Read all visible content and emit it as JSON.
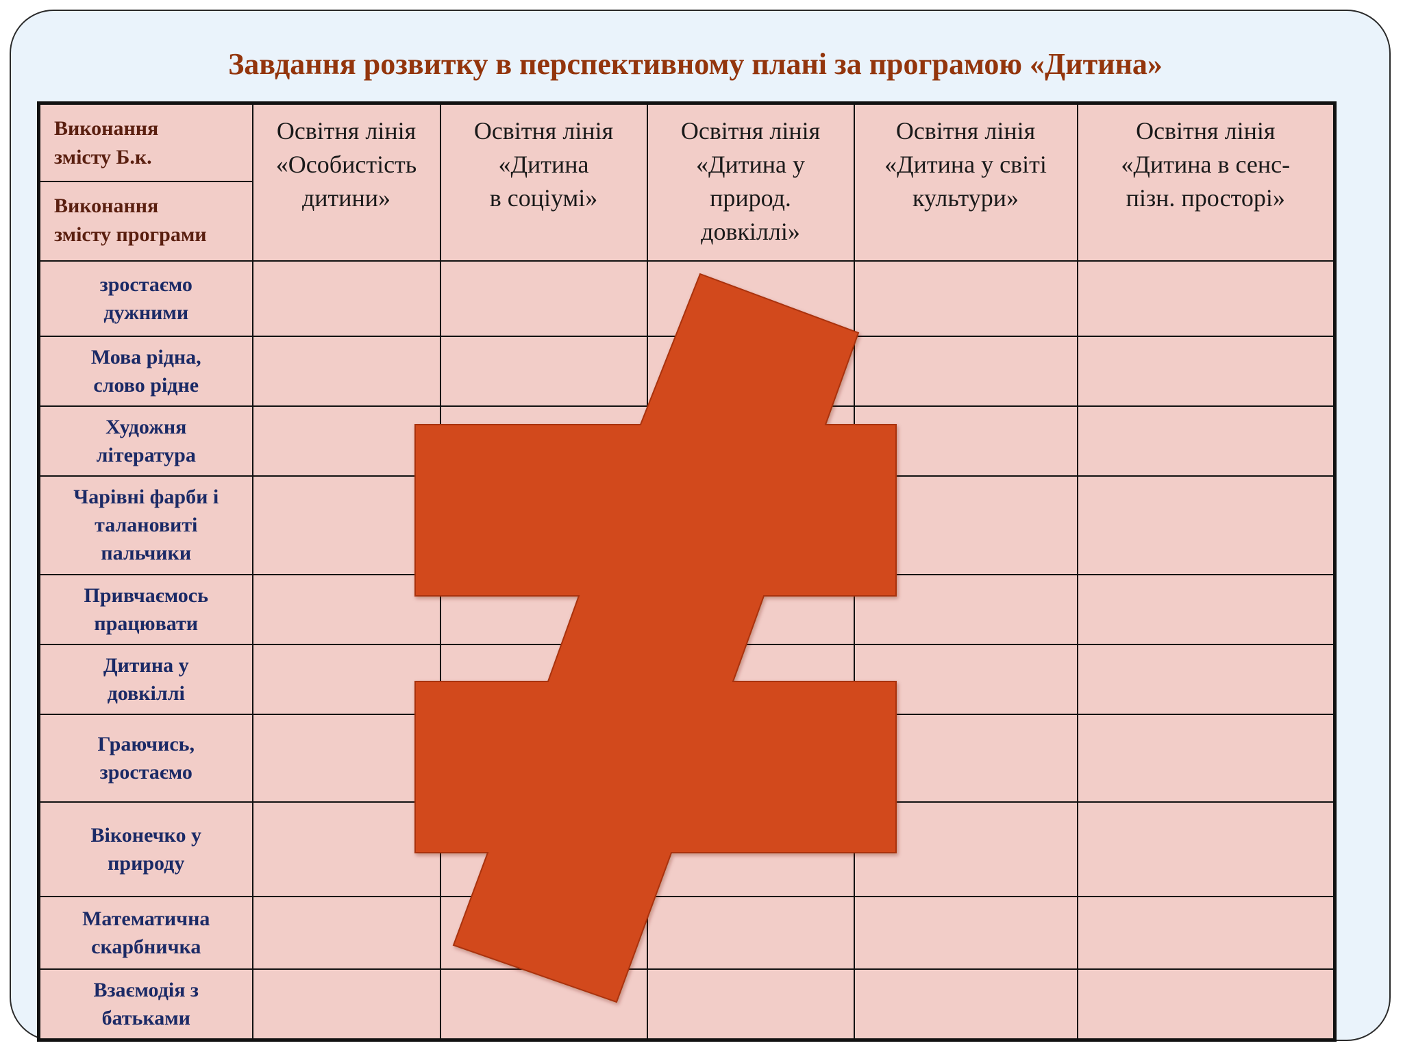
{
  "title": "Завдання розвитку в перспективному плані за програмою «Дитина»",
  "corner": {
    "top_label": "Виконання\nзмісту Б.к.",
    "bottom_label": "Виконання\nзмісту програми"
  },
  "columns": [
    "Освітня лінія\n«Особистість\nдитини»",
    "Освітня лінія\n«Дитина\nв соціумі»",
    "Освітня лінія\n«Дитина у\nприрод.\nдовкіллі»",
    "Освітня лінія\n«Дитина у світі\nкультури»",
    "Освітня лінія\n«Дитина в сенс-\nпізн.  просторі»"
  ],
  "rows": [
    "зростаємо\nдужними",
    "Мова рідна,\nслово рідне",
    "Художня\nлітература",
    "Чарівні фарби і\nталановиті\nпальчики",
    "Привчаємось\nпрацювати",
    "Дитина у\nдовкіллі",
    "Граючись,\nзростаємо",
    "Віконечко у\nприроду",
    "Математична\nскарбничка",
    "Взаємодія з\nбатьками"
  ],
  "colors": {
    "title": "#93350c",
    "table_fill": "#f2cdc8",
    "row_text": "#1b2a66",
    "sign_fill": "#d24a1c"
  },
  "overlay_icon": "not-equal-icon"
}
